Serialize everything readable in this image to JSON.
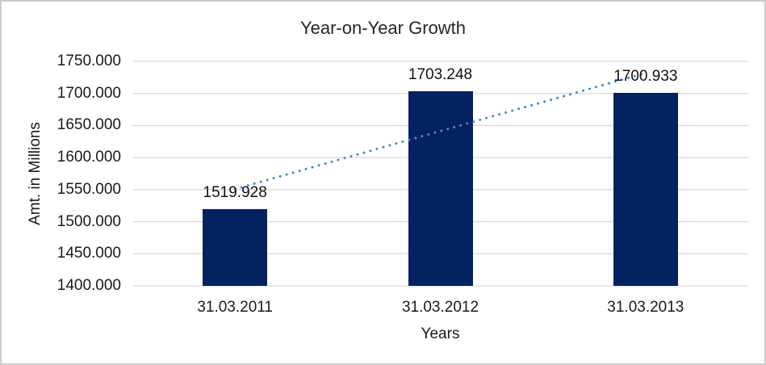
{
  "chart_data": {
    "type": "bar",
    "title": "Year-on-Year Growth",
    "xlabel": "Years",
    "ylabel": "Amt. in Millions",
    "categories": [
      "31.03.2011",
      "31.03.2012",
      "31.03.2013"
    ],
    "values": [
      1519.928,
      1703.248,
      1700.933
    ],
    "data_labels": [
      "1519.928",
      "1703.248",
      "1700.933"
    ],
    "ylim": [
      1400,
      1750
    ],
    "ytick_labels": [
      "1400.000",
      "1450.000",
      "1500.000",
      "1550.000",
      "1600.000",
      "1650.000",
      "1700.000",
      "1750.000"
    ],
    "grid": true,
    "legend": "none",
    "bar_color": "#04225F",
    "gridline_color": "#D9D9D9",
    "trendline": {
      "type": "linear",
      "style": "dotted",
      "color": "#4F86C6"
    }
  }
}
